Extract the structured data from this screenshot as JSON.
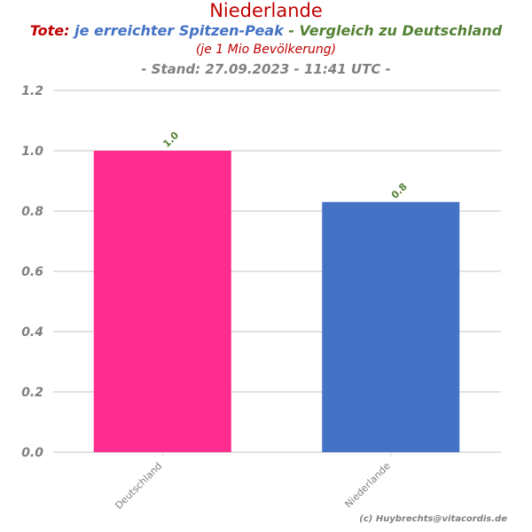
{
  "title": "Niederlande",
  "subtitle": {
    "part1": "Tote:",
    "part2": "je erreichter Spitzen-Peak",
    "part3": "- Vergleich zu Deutschland"
  },
  "line3": "(je 1 Mio Bevölkerung)",
  "line4": "- Stand: 27.09.2023 - 11:41 UTC -",
  "credit": "(c) Huybrechts@vitacordis.de",
  "colors": {
    "bar_de": "#ff2d8f",
    "bar_nl": "#4472c4",
    "data_label": "#548235",
    "grid": "#d9d9d9",
    "tick": "#808080"
  },
  "chart_data": {
    "type": "bar",
    "categories": [
      "Deutschland",
      "Niederlande"
    ],
    "values": [
      1.0,
      0.83
    ],
    "data_labels": [
      "1.0",
      "0.8"
    ],
    "ylim": [
      0,
      1.2
    ],
    "yticks": [
      "0.0",
      "0.2",
      "0.4",
      "0.6",
      "0.8",
      "1.0",
      "1.2"
    ],
    "grid": true,
    "xlabel": "",
    "ylabel": ""
  }
}
